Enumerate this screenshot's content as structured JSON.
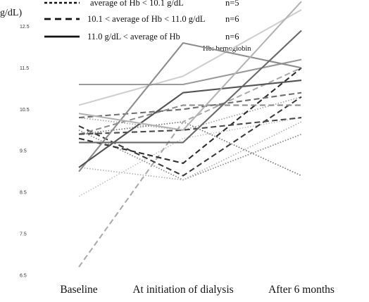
{
  "chart_data": {
    "type": "line",
    "ylabel": "g/dL)",
    "annotation": "Hb: hemoglobin",
    "ylim": [
      6.5,
      13.0
    ],
    "yticks": [
      "6.5",
      "7.5",
      "8.5",
      "9.5",
      "10.5",
      "11.5",
      "12.5"
    ],
    "categories": [
      "Baseline",
      "At initiation of dialysis",
      "After 6 months"
    ],
    "legend": [
      {
        "label": "average of Hb < 10.1 g/dL",
        "n": "n=5",
        "style": "dotted"
      },
      {
        "label": "10.1 < average of Hb < 11.0 g/dL",
        "n": "n=6",
        "style": "dashed"
      },
      {
        "label": "11.0 g/dL < average of Hb",
        "n": "n=6",
        "style": "solid"
      }
    ],
    "series": [
      {
        "group": "dotted",
        "values": [
          10.3,
          10.0,
          10.8
        ],
        "color": "#a9a9a9"
      },
      {
        "group": "dotted",
        "values": [
          10.0,
          8.8,
          9.9
        ],
        "color": "#8a8a8a"
      },
      {
        "group": "dotted",
        "values": [
          9.1,
          8.8,
          10.2
        ],
        "color": "#b5b5b5"
      },
      {
        "group": "dotted",
        "values": [
          8.4,
          9.8,
          10.3
        ],
        "color": "#c8c8c8"
      },
      {
        "group": "dotted",
        "values": [
          9.9,
          10.2,
          8.9
        ],
        "color": "#7a7a7a"
      },
      {
        "group": "dashed",
        "values": [
          6.7,
          10.2,
          11.5
        ],
        "color": "#ababab"
      },
      {
        "group": "dashed",
        "values": [
          9.8,
          9.2,
          11.5
        ],
        "color": "#2e2e2e"
      },
      {
        "group": "dashed",
        "values": [
          10.1,
          8.9,
          10.8
        ],
        "color": "#3c3c3c"
      },
      {
        "group": "dashed",
        "values": [
          9.9,
          10.6,
          10.6
        ],
        "color": "#8e8e8e"
      },
      {
        "group": "dashed",
        "values": [
          10.3,
          10.5,
          10.9
        ],
        "color": "#6e6e6e"
      },
      {
        "group": "dashed",
        "values": [
          9.9,
          10.0,
          10.3
        ],
        "color": "#4a4a4a"
      },
      {
        "group": "solid",
        "values": [
          10.6,
          11.3,
          12.9
        ],
        "color": "#cfcfcf"
      },
      {
        "group": "solid",
        "values": [
          11.1,
          11.1,
          11.7
        ],
        "color": "#999999"
      },
      {
        "group": "solid",
        "values": [
          9.0,
          12.1,
          11.5
        ],
        "color": "#8d8d8d"
      },
      {
        "group": "solid",
        "values": [
          9.1,
          10.9,
          11.2
        ],
        "color": "#545454"
      },
      {
        "group": "solid",
        "values": [
          9.7,
          9.7,
          12.4
        ],
        "color": "#6a6a6a"
      },
      {
        "group": "solid",
        "values": [
          10.4,
          10.0,
          13.1
        ],
        "color": "#b3b3b3"
      }
    ]
  }
}
